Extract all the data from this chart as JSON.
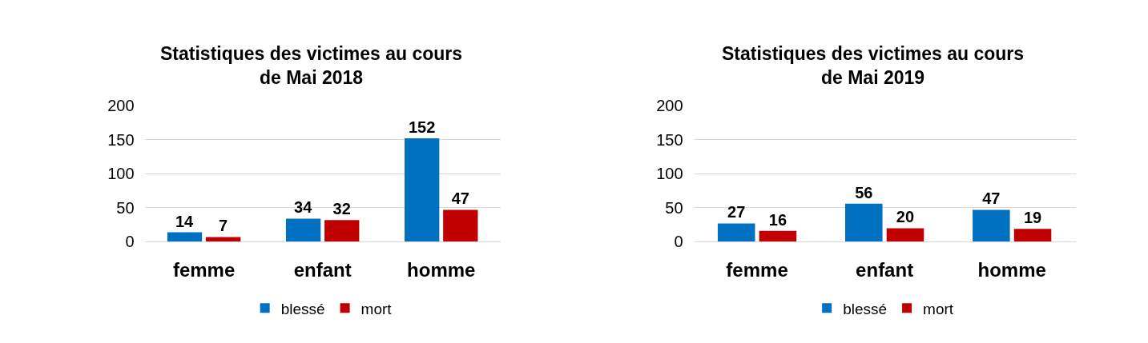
{
  "chart_data": [
    {
      "type": "bar",
      "title": "Statistiques des victimes au cours de Mai 2018",
      "categories": [
        "femme",
        "enfant",
        "homme"
      ],
      "series": [
        {
          "name": "blessé",
          "color": "#0070c0",
          "values": [
            14,
            34,
            152
          ]
        },
        {
          "name": "mort",
          "color": "#c00000",
          "values": [
            7,
            32,
            47
          ]
        }
      ],
      "ylim": [
        0,
        200
      ],
      "yticks": [
        0,
        50,
        100,
        150,
        200
      ],
      "grid": "y",
      "legend": "bottom",
      "data_labels": true
    },
    {
      "type": "bar",
      "title": "Statistiques des victimes au cours de Mai 2019",
      "categories": [
        "femme",
        "enfant",
        "homme"
      ],
      "series": [
        {
          "name": "blessé",
          "color": "#0070c0",
          "values": [
            27,
            56,
            47
          ]
        },
        {
          "name": "mort",
          "color": "#c00000",
          "values": [
            16,
            20,
            19
          ]
        }
      ],
      "ylim": [
        0,
        200
      ],
      "yticks": [
        0,
        50,
        100,
        150,
        200
      ],
      "grid": "y",
      "legend": "bottom",
      "data_labels": true
    }
  ]
}
